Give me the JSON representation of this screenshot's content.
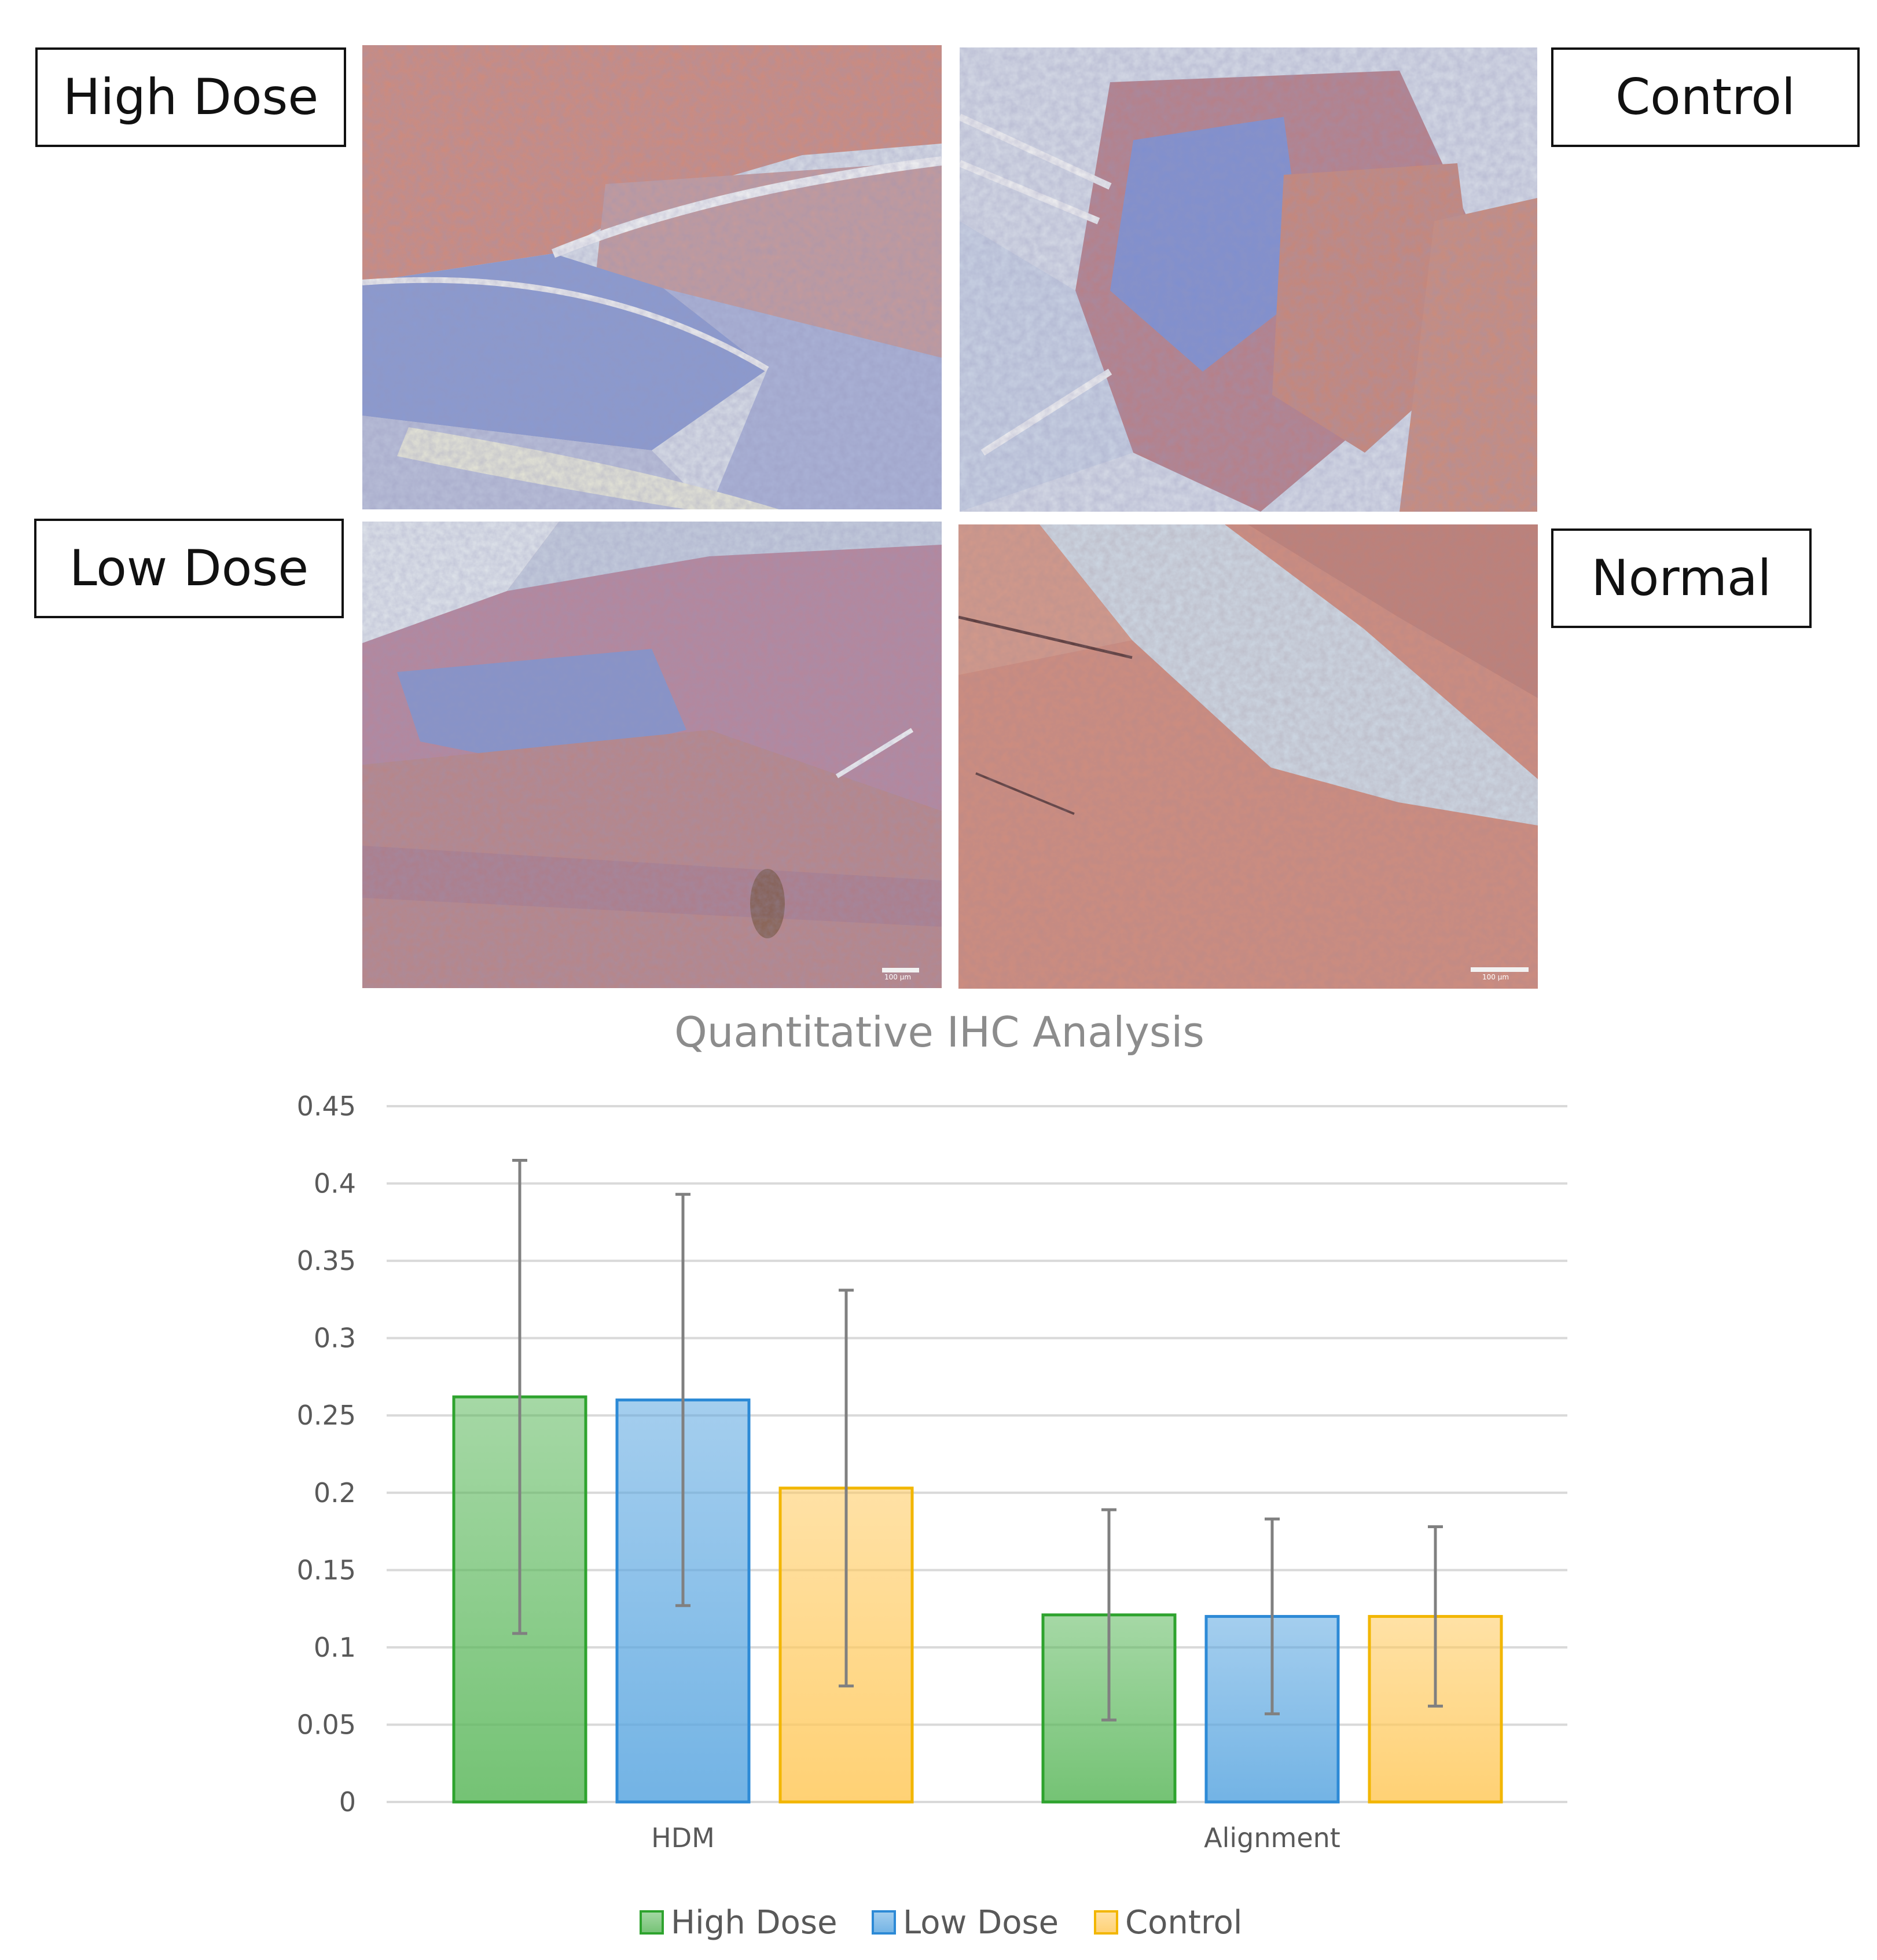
{
  "panels": {
    "high_dose": {
      "label": "High Dose"
    },
    "control": {
      "label": "Control"
    },
    "low_dose": {
      "label": "Low Dose",
      "scale_text": "100 µm"
    },
    "normal": {
      "label": "Normal",
      "scale_text": "100 µm"
    }
  },
  "chart_data": {
    "type": "bar",
    "title": "Quantitative IHC Analysis",
    "categories": [
      "HDM",
      "Alignment"
    ],
    "series": [
      {
        "name": "High Dose",
        "color": "#5cb85c",
        "edge": "#2ea32e",
        "values": [
          0.262,
          0.121
        ],
        "error": [
          0.153,
          0.068
        ]
      },
      {
        "name": "Low Dose",
        "color": "#5aa6e0",
        "edge": "#2d8ad6",
        "values": [
          0.26,
          0.12
        ],
        "error": [
          0.133,
          0.063
        ]
      },
      {
        "name": "Control",
        "color": "#ffc95c",
        "edge": "#f2b600",
        "values": [
          0.203,
          0.12
        ],
        "error": [
          0.128,
          0.058
        ]
      }
    ],
    "ylim": [
      0,
      0.45
    ],
    "yticks": [
      0,
      0.05,
      0.1,
      0.15,
      0.2,
      0.25,
      0.3,
      0.35,
      0.4,
      0.45
    ],
    "ytick_labels": [
      "0",
      "0.05",
      "0.1",
      "0.15",
      "0.2",
      "0.25",
      "0.3",
      "0.35",
      "0.4",
      "0.45"
    ],
    "grid": true,
    "legend_position": "bottom"
  }
}
